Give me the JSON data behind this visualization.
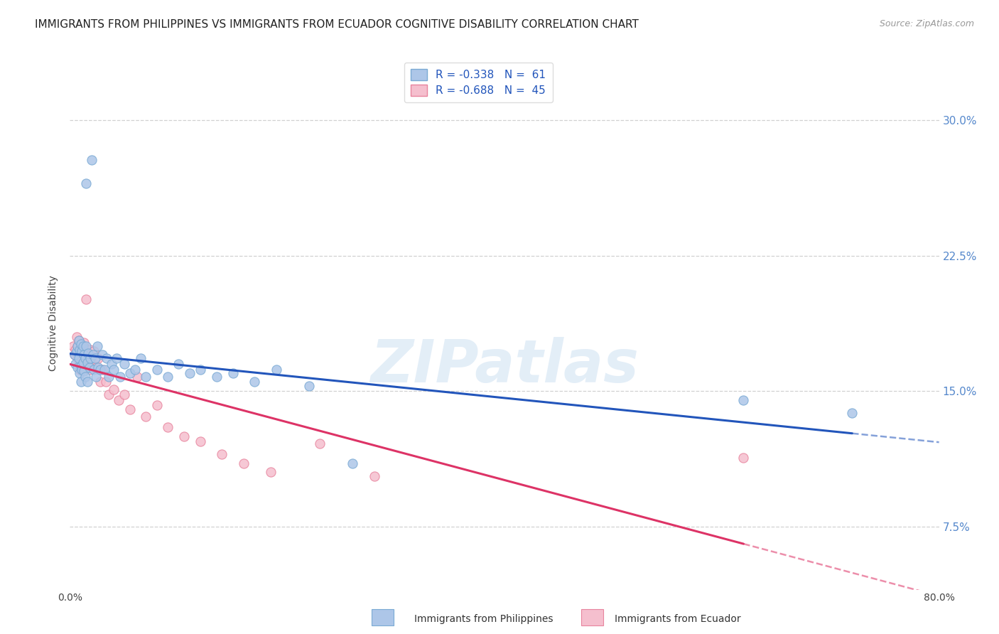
{
  "title": "IMMIGRANTS FROM PHILIPPINES VS IMMIGRANTS FROM ECUADOR COGNITIVE DISABILITY CORRELATION CHART",
  "source": "Source: ZipAtlas.com",
  "ylabel": "Cognitive Disability",
  "yticks": [
    0.075,
    0.15,
    0.225,
    0.3
  ],
  "ytick_labels": [
    "7.5%",
    "15.0%",
    "22.5%",
    "30.0%"
  ],
  "xlim": [
    0.0,
    0.8
  ],
  "ylim": [
    0.04,
    0.335
  ],
  "legend_label_blue": "R = -0.338   N =  61",
  "legend_label_pink": "R = -0.688   N =  45",
  "philippines_color": "#adc6e8",
  "philippines_edge": "#7aaad4",
  "ecuador_color": "#f5bfce",
  "ecuador_edge": "#e8849e",
  "trend_philippines_color": "#2255bb",
  "trend_ecuador_color": "#dd3366",
  "watermark": "ZIPatlas",
  "philippines_x": [
    0.004,
    0.005,
    0.006,
    0.007,
    0.007,
    0.008,
    0.008,
    0.009,
    0.009,
    0.01,
    0.01,
    0.01,
    0.011,
    0.011,
    0.012,
    0.012,
    0.013,
    0.013,
    0.014,
    0.014,
    0.015,
    0.015,
    0.016,
    0.016,
    0.017,
    0.018,
    0.019,
    0.02,
    0.021,
    0.022,
    0.023,
    0.024,
    0.025,
    0.026,
    0.028,
    0.03,
    0.032,
    0.034,
    0.036,
    0.038,
    0.04,
    0.043,
    0.046,
    0.05,
    0.055,
    0.06,
    0.065,
    0.07,
    0.08,
    0.09,
    0.1,
    0.11,
    0.12,
    0.135,
    0.15,
    0.17,
    0.19,
    0.22,
    0.26,
    0.62,
    0.72
  ],
  "philippines_y": [
    0.17,
    0.165,
    0.172,
    0.175,
    0.163,
    0.168,
    0.178,
    0.173,
    0.16,
    0.176,
    0.164,
    0.155,
    0.172,
    0.162,
    0.175,
    0.166,
    0.17,
    0.161,
    0.168,
    0.158,
    0.265,
    0.175,
    0.166,
    0.155,
    0.171,
    0.163,
    0.168,
    0.278,
    0.17,
    0.162,
    0.168,
    0.158,
    0.175,
    0.163,
    0.162,
    0.17,
    0.162,
    0.168,
    0.158,
    0.165,
    0.162,
    0.168,
    0.158,
    0.165,
    0.16,
    0.162,
    0.168,
    0.158,
    0.162,
    0.158,
    0.165,
    0.16,
    0.162,
    0.158,
    0.16,
    0.155,
    0.162,
    0.153,
    0.11,
    0.145,
    0.138
  ],
  "ecuador_x": [
    0.003,
    0.004,
    0.005,
    0.006,
    0.007,
    0.007,
    0.008,
    0.009,
    0.009,
    0.01,
    0.01,
    0.011,
    0.011,
    0.012,
    0.013,
    0.014,
    0.015,
    0.016,
    0.017,
    0.018,
    0.019,
    0.02,
    0.022,
    0.024,
    0.026,
    0.028,
    0.03,
    0.033,
    0.036,
    0.04,
    0.045,
    0.05,
    0.055,
    0.062,
    0.07,
    0.08,
    0.09,
    0.105,
    0.12,
    0.14,
    0.16,
    0.185,
    0.23,
    0.28,
    0.62
  ],
  "ecuador_y": [
    0.175,
    0.17,
    0.173,
    0.18,
    0.175,
    0.168,
    0.178,
    0.173,
    0.162,
    0.175,
    0.167,
    0.173,
    0.162,
    0.17,
    0.177,
    0.168,
    0.201,
    0.173,
    0.166,
    0.162,
    0.173,
    0.166,
    0.172,
    0.163,
    0.168,
    0.155,
    0.162,
    0.155,
    0.148,
    0.151,
    0.145,
    0.148,
    0.14,
    0.158,
    0.136,
    0.142,
    0.13,
    0.125,
    0.122,
    0.115,
    0.11,
    0.105,
    0.121,
    0.103,
    0.113
  ],
  "marker_size": 90,
  "title_fontsize": 11,
  "axis_label_fontsize": 10,
  "tick_fontsize": 10,
  "legend_fontsize": 11,
  "background_color": "#ffffff",
  "grid_color": "#cccccc",
  "right_axis_color": "#5588cc",
  "legend_text_color": "#2255bb"
}
